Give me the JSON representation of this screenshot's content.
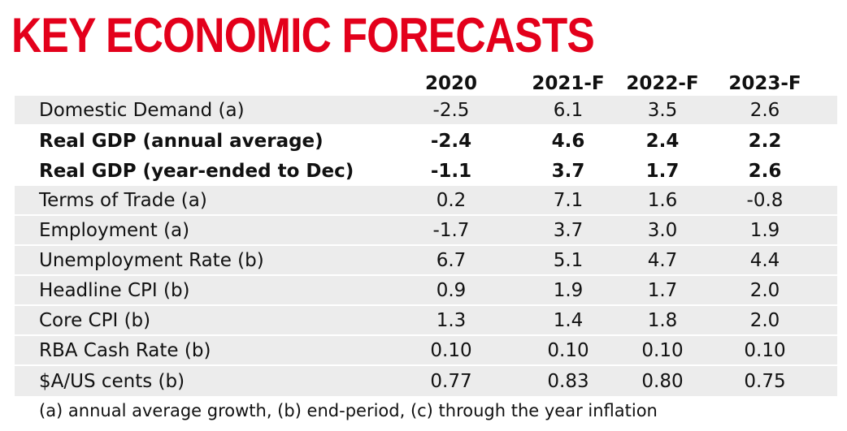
{
  "title": "KEY ECONOMIC FORECASTS",
  "accent_color": "#e3001b",
  "chart_data": {
    "type": "table",
    "title": "KEY ECONOMIC FORECASTS",
    "columns": [
      "2020",
      "2021-F",
      "2022-F",
      "2023-F"
    ],
    "rows": [
      {
        "label": "Domestic Demand (a)",
        "values": [
          "-2.5",
          "6.1",
          "3.5",
          "2.6"
        ],
        "bold": false
      },
      {
        "label": "Real GDP (annual average)",
        "values": [
          "-2.4",
          "4.6",
          "2.4",
          "2.2"
        ],
        "bold": true
      },
      {
        "label": "Real GDP (year-ended to Dec)",
        "values": [
          "-1.1",
          "3.7",
          "1.7",
          "2.6"
        ],
        "bold": true
      },
      {
        "label": "Terms of Trade (a)",
        "values": [
          "0.2",
          "7.1",
          "1.6",
          "-0.8"
        ],
        "bold": false
      },
      {
        "label": "Employment (a)",
        "values": [
          "-1.7",
          "3.7",
          "3.0",
          "1.9"
        ],
        "bold": false
      },
      {
        "label": "Unemployment Rate (b)",
        "values": [
          "6.7",
          "5.1",
          "4.7",
          "4.4"
        ],
        "bold": false
      },
      {
        "label": "Headline CPI (b)",
        "values": [
          "0.9",
          "1.9",
          "1.7",
          "2.0"
        ],
        "bold": false
      },
      {
        "label": "Core CPI (b)",
        "values": [
          "1.3",
          "1.4",
          "1.8",
          "2.0"
        ],
        "bold": false
      },
      {
        "label": "RBA Cash Rate (b)",
        "values": [
          "0.10",
          "0.10",
          "0.10",
          "0.10"
        ],
        "bold": false
      },
      {
        "label": "$A/US cents (b)",
        "values": [
          "0.77",
          "0.83",
          "0.80",
          "0.75"
        ],
        "bold": false
      }
    ],
    "footnote": "(a) annual average growth, (b) end-period, (c) through the year inflation"
  }
}
